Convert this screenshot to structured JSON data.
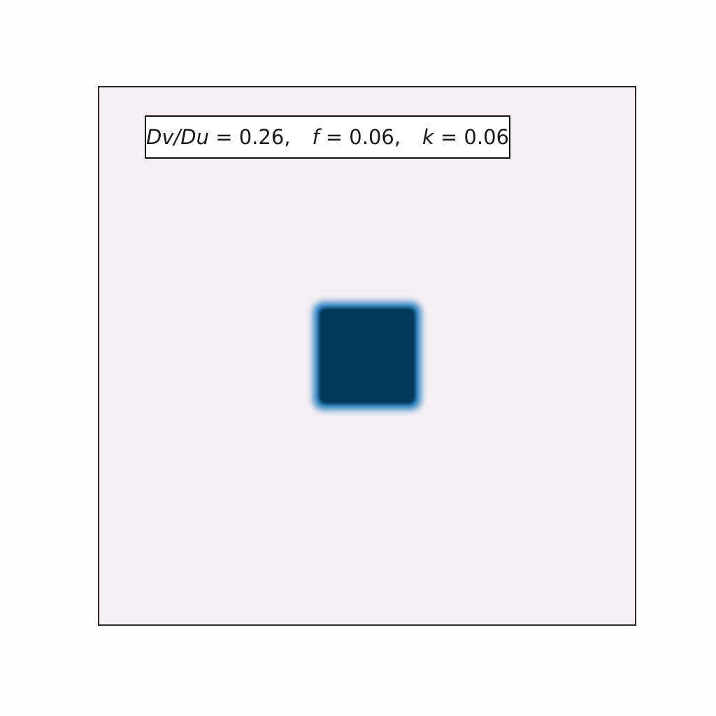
{
  "chart_data": {
    "type": "heatmap",
    "title": "",
    "xlabel": "",
    "ylabel": "",
    "grid": false,
    "colormap": "PuBu",
    "colors": {
      "background": "#f6f0f4",
      "pattern_core": "#023858",
      "pattern_edge": "#0e72b8",
      "frame": "#2a2a2a"
    },
    "pattern": {
      "shape": "square",
      "center_fraction": [
        0.5,
        0.5
      ],
      "side_fraction": 0.2
    },
    "annotation": {
      "ratio_label": "Dv/Du",
      "ratio_value": "0.26,",
      "f_label": "f",
      "f_value": "0.06,",
      "k_label": "k",
      "k_value": "0.06"
    },
    "parameters": {
      "Dv/Du": 0.26,
      "f": 0.06,
      "k": 0.06
    }
  }
}
